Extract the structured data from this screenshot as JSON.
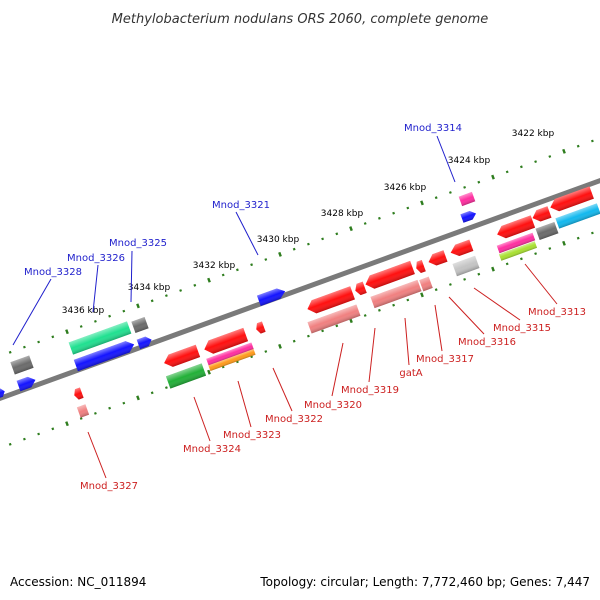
{
  "title": "Methylobacterium nodulans ORS 2060, complete genome",
  "accession": "Accession: NC_011894",
  "topology": "Topology: circular; Length: 7,772,460 bp; Genes: 7,447",
  "colors": {
    "forward_label": "#1f1fcc",
    "reverse_label": "#cc1f1f",
    "backbone": "#7a7a7a",
    "ticks": "#2e7d1e"
  },
  "scale": [
    {
      "label": "3422 kbp"
    },
    {
      "label": "3424 kbp"
    },
    {
      "label": "3426 kbp"
    },
    {
      "label": "3428 kbp"
    },
    {
      "label": "3430 kbp"
    },
    {
      "label": "3432 kbp"
    },
    {
      "label": "3434 kbp"
    },
    {
      "label": "3436 kbp"
    }
  ],
  "forward_genes": [
    {
      "label": "Mnod_3314"
    },
    {
      "label": "Mnod_3321"
    },
    {
      "label": "Mnod_3325"
    },
    {
      "label": "Mnod_3326"
    },
    {
      "label": "Mnod_3328"
    }
  ],
  "reverse_genes": [
    {
      "label": "Mnod_3313"
    },
    {
      "label": "Mnod_3315"
    },
    {
      "label": "Mnod_3316"
    },
    {
      "label": "Mnod_3317"
    },
    {
      "label": "gatA"
    },
    {
      "label": "Mnod_3319"
    },
    {
      "label": "Mnod_3320"
    },
    {
      "label": "Mnod_3322"
    },
    {
      "label": "Mnod_3323"
    },
    {
      "label": "Mnod_3324"
    },
    {
      "label": "Mnod_3327"
    }
  ]
}
